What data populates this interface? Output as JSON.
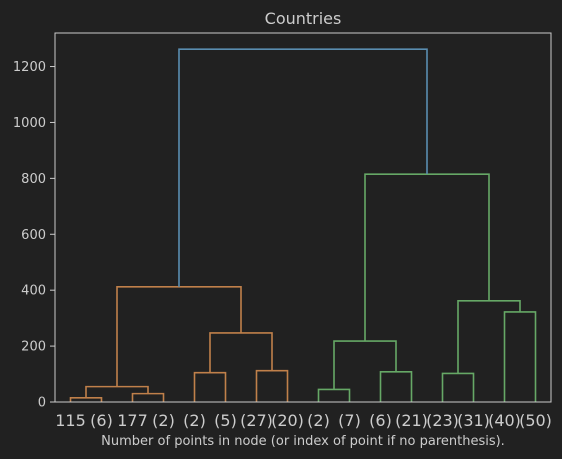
{
  "chart_data": {
    "type": "dendrogram",
    "title": "Countries",
    "xlabel": "Number of points in node (or index of point if no parenthesis).",
    "ylabel": "",
    "ylim": [
      0,
      1320
    ],
    "yticks": [
      0,
      200,
      400,
      600,
      800,
      1000,
      1200
    ],
    "leaf_labels": [
      "115",
      "(6)",
      "177",
      "(2)",
      "(2)",
      "(5)",
      "(27)",
      "(20)",
      "(2)",
      "(7)",
      "(6)",
      "(21)",
      "(23)",
      "(31)",
      "(40)",
      "(50)"
    ],
    "colors": {
      "background": "#212121",
      "axes": "#cccccc",
      "text": "#cccccc",
      "cluster_orange": "#c0804a",
      "cluster_green": "#66a866",
      "root_blue": "#5a8db0"
    },
    "merges": [
      {
        "left": "leaf:0",
        "right": "leaf:1",
        "height": 15,
        "color": "cluster_orange"
      },
      {
        "left": "leaf:2",
        "right": "leaf:3",
        "height": 30,
        "color": "cluster_orange"
      },
      {
        "left": "node:0",
        "right": "node:1",
        "height": 55,
        "color": "cluster_orange"
      },
      {
        "left": "leaf:4",
        "right": "leaf:5",
        "height": 105,
        "color": "cluster_orange"
      },
      {
        "left": "leaf:6",
        "right": "leaf:7",
        "height": 112,
        "color": "cluster_orange"
      },
      {
        "left": "node:3",
        "right": "node:4",
        "height": 247,
        "color": "cluster_orange"
      },
      {
        "left": "node:2",
        "right": "node:5",
        "height": 412,
        "color": "cluster_orange"
      },
      {
        "left": "leaf:8",
        "right": "leaf:9",
        "height": 45,
        "color": "cluster_green"
      },
      {
        "left": "leaf:10",
        "right": "leaf:11",
        "height": 108,
        "color": "cluster_green"
      },
      {
        "left": "node:7",
        "right": "node:8",
        "height": 218,
        "color": "cluster_green"
      },
      {
        "left": "leaf:12",
        "right": "leaf:13",
        "height": 102,
        "color": "cluster_green"
      },
      {
        "left": "leaf:14",
        "right": "leaf:15",
        "height": 322,
        "color": "cluster_green"
      },
      {
        "left": "node:10",
        "right": "node:11",
        "height": 362,
        "color": "cluster_green"
      },
      {
        "left": "node:9",
        "right": "node:12",
        "height": 815,
        "color": "cluster_green"
      },
      {
        "left": "node:6",
        "right": "node:13",
        "height": 1262,
        "color": "root_blue"
      }
    ]
  }
}
